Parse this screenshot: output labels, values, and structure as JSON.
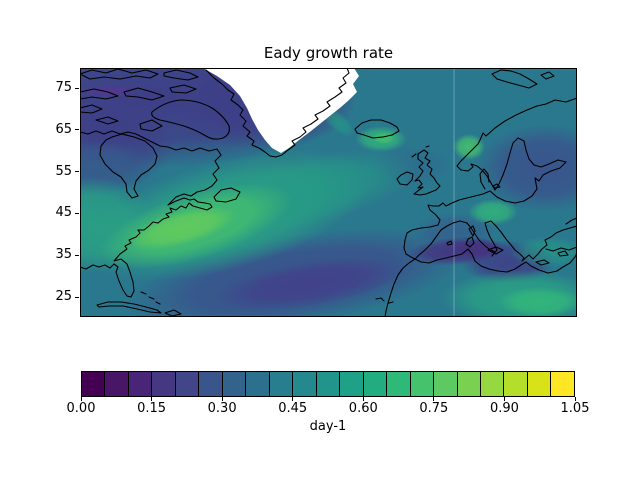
{
  "title": "Eady growth rate",
  "yaxis": {
    "tick_labels": [
      "75",
      "65",
      "55",
      "45",
      "35",
      "25"
    ]
  },
  "colorbar": {
    "label": "day-1",
    "tick_labels": [
      "0.00",
      "0.15",
      "0.30",
      "0.45",
      "0.60",
      "0.75",
      "0.90",
      "1.05"
    ],
    "min": 0.0,
    "max": 1.05,
    "level_step": 0.05,
    "colormap": "viridis",
    "segment_colors": [
      "#440154",
      "#481567",
      "#482576",
      "#453781",
      "#404688",
      "#39558c",
      "#33638d",
      "#2d708e",
      "#287d8e",
      "#23898e",
      "#21958b",
      "#1fa188",
      "#22ad81",
      "#2eb978",
      "#44c26d",
      "#5dc963",
      "#7ad151",
      "#95d840",
      "#b5de2b",
      "#d8e219",
      "#fde725"
    ]
  },
  "chart_data": {
    "type": "heatmap",
    "subtype": "filled-contour-map",
    "title": "Eady growth rate",
    "units": "day-1",
    "colormap": "viridis",
    "contour_levels": [
      0.0,
      0.05,
      0.1,
      0.15,
      0.2,
      0.25,
      0.3,
      0.35,
      0.4,
      0.45,
      0.5,
      0.55,
      0.6,
      0.65,
      0.7,
      0.75,
      0.8,
      0.85,
      0.9,
      0.95,
      1.0,
      1.05
    ],
    "lat_ticks": [
      75,
      65,
      55,
      45,
      35,
      25
    ],
    "lat_range_approx": [
      20,
      80
    ],
    "region": "North Atlantic, eastern North America, Europe, North Africa",
    "masked_region": "Greenland shown white (masked, no data)",
    "coastlines": true,
    "legend_position": "horizontal colorbar below map",
    "features": [
      {
        "name": "storm-track maximum off U.S. East Coast (~40N, 65W)",
        "approx_value": 0.8
      },
      {
        "name": "green band extending northeast across mid-Atlantic",
        "approx_value": 0.55
      },
      {
        "name": "local maximum south/east of Iceland",
        "approx_value": 0.65
      },
      {
        "name": "local maximum over southern Norway",
        "approx_value": 0.7
      },
      {
        "name": "local maximum near the Alps / central Europe",
        "approx_value": 0.6
      },
      {
        "name": "subtropical minimum band, central Atlantic (~30N)",
        "approx_value": 0.2
      },
      {
        "name": "minimum near Iberia / Morocco coast",
        "approx_value": 0.1
      },
      {
        "name": "secondary maximum along NW Africa (~25N)",
        "approx_value": 0.6
      },
      {
        "name": "low values over Canadian Arctic and high latitudes",
        "approx_value": 0.25
      }
    ]
  }
}
